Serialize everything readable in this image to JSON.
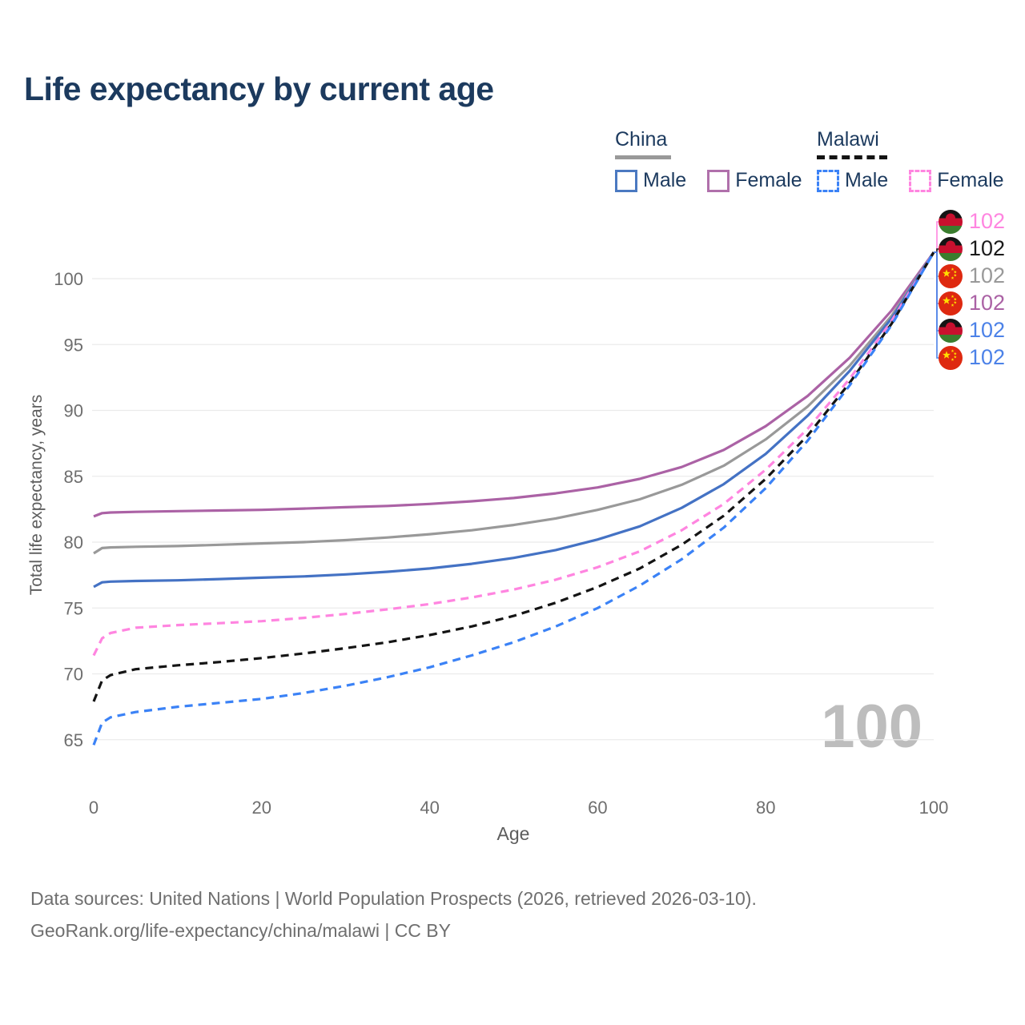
{
  "title": "Life expectancy by current age",
  "legend": {
    "groups": [
      {
        "country": "China",
        "line_style": "solid",
        "underline_color": "#999999",
        "items": [
          {
            "label": "Male",
            "color": "#4b79c1",
            "dashed": false
          },
          {
            "label": "Female",
            "color": "#b070ab",
            "dashed": false
          }
        ]
      },
      {
        "country": "Malawi",
        "line_style": "dashed",
        "underline_color": "#141414",
        "items": [
          {
            "label": "Male",
            "color": "#3b82f6",
            "dashed": true
          },
          {
            "label": "Female",
            "color": "#ff85e0",
            "dashed": true
          }
        ]
      }
    ]
  },
  "watermark_age": "100",
  "footer": {
    "line1": "Data sources: United Nations | World Population Prospects (2026, retrieved 2026-03-10).",
    "line2": "GeoRank.org/life-expectancy/china/malawi | CC BY"
  },
  "chart_data": {
    "type": "line",
    "title": "Life expectancy by current age",
    "xlabel": "Age",
    "ylabel": "Total life expectancy, years",
    "xlim": [
      0,
      100
    ],
    "ylim": [
      62.5,
      103
    ],
    "xticks": [
      0,
      20,
      40,
      60,
      80,
      100
    ],
    "yticks": [
      65,
      70,
      75,
      80,
      85,
      90,
      95,
      100
    ],
    "grid": true,
    "legend_position": "top-right",
    "x": [
      0,
      1,
      2,
      5,
      10,
      15,
      20,
      25,
      30,
      35,
      40,
      45,
      50,
      55,
      60,
      65,
      70,
      75,
      80,
      85,
      90,
      95,
      100
    ],
    "series": [
      {
        "name": "China Female",
        "country": "china",
        "sex": "female",
        "color": "#ab62a5",
        "dashed": false,
        "values": [
          81.95,
          82.2,
          82.25,
          82.3,
          82.35,
          82.4,
          82.45,
          82.55,
          82.65,
          82.75,
          82.9,
          83.1,
          83.35,
          83.7,
          84.15,
          84.8,
          85.7,
          87.0,
          88.8,
          91.1,
          94.0,
          97.6,
          102
        ]
      },
      {
        "name": "China",
        "country": "china",
        "sex": "both",
        "color": "#999999",
        "dashed": false,
        "values": [
          79.15,
          79.55,
          79.6,
          79.65,
          79.7,
          79.8,
          79.9,
          80.0,
          80.15,
          80.35,
          80.6,
          80.9,
          81.3,
          81.8,
          82.45,
          83.25,
          84.35,
          85.8,
          87.8,
          90.3,
          93.4,
          97.2,
          102
        ]
      },
      {
        "name": "China Male",
        "country": "china",
        "sex": "male",
        "color": "#4472c4",
        "dashed": false,
        "values": [
          76.6,
          76.95,
          77.0,
          77.05,
          77.1,
          77.2,
          77.3,
          77.4,
          77.55,
          77.75,
          78.0,
          78.35,
          78.8,
          79.4,
          80.2,
          81.2,
          82.6,
          84.4,
          86.7,
          89.6,
          93.0,
          97.0,
          102
        ]
      },
      {
        "name": "Malawi Female",
        "country": "malawi",
        "sex": "female",
        "color": "#ff85e0",
        "dashed": true,
        "values": [
          71.4,
          72.7,
          73.1,
          73.5,
          73.7,
          73.85,
          74.0,
          74.25,
          74.55,
          74.9,
          75.3,
          75.8,
          76.4,
          77.15,
          78.1,
          79.3,
          80.9,
          82.9,
          85.5,
          88.6,
          92.4,
          96.8,
          102
        ]
      },
      {
        "name": "Malawi",
        "country": "malawi",
        "sex": "both",
        "color": "#141414",
        "dashed": true,
        "values": [
          67.9,
          69.5,
          69.9,
          70.35,
          70.65,
          70.9,
          71.2,
          71.55,
          71.95,
          72.4,
          72.95,
          73.6,
          74.4,
          75.4,
          76.6,
          78.0,
          79.8,
          82.0,
          84.8,
          88.1,
          92.1,
          96.6,
          102
        ]
      },
      {
        "name": "Malawi Male",
        "country": "malawi",
        "sex": "male",
        "color": "#3b82f6",
        "dashed": true,
        "values": [
          64.6,
          66.3,
          66.7,
          67.1,
          67.5,
          67.8,
          68.1,
          68.55,
          69.1,
          69.75,
          70.5,
          71.4,
          72.4,
          73.6,
          75.0,
          76.7,
          78.7,
          81.1,
          84.1,
          87.7,
          91.9,
          96.5,
          102
        ]
      }
    ],
    "end_labels": [
      {
        "series": "Malawi Female",
        "flag": "malawi",
        "value": "102",
        "color": "#ff85e0"
      },
      {
        "series": "Malawi",
        "flag": "malawi",
        "value": "102",
        "color": "#1a1a1a"
      },
      {
        "series": "China",
        "flag": "china",
        "value": "102",
        "color": "#999999"
      },
      {
        "series": "China Female",
        "flag": "china",
        "value": "102",
        "color": "#ab62a5"
      },
      {
        "series": "Malawi Male",
        "flag": "malawi",
        "value": "102",
        "color": "#4c82e8"
      },
      {
        "series": "China Male",
        "flag": "china",
        "value": "102",
        "color": "#4c82e8"
      }
    ]
  }
}
